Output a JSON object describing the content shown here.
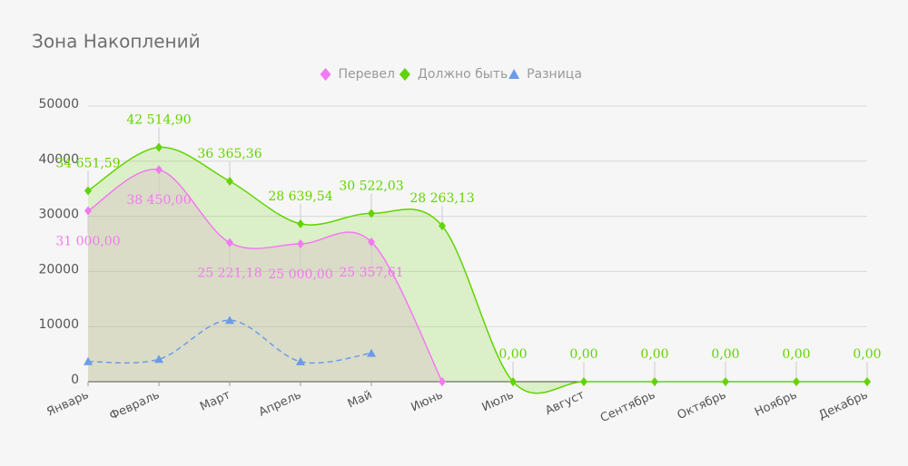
{
  "chart_data": {
    "type": "spline-area",
    "title": "Зона Накоплений",
    "categories": [
      "Январь",
      "Февраль",
      "Март",
      "Апрель",
      "Май",
      "Июнь",
      "Июль",
      "Август",
      "Сентябрь",
      "Октябрь",
      "Ноябрь",
      "Декабрь"
    ],
    "series": [
      {
        "name": "Перевел",
        "color": "#f27af0",
        "marker": "diamond",
        "area": true,
        "values": [
          31000,
          38450,
          25221.18,
          25000,
          25357.61,
          0,
          null,
          null,
          null,
          null,
          null,
          null
        ],
        "value_labels": [
          "31 000,00",
          "38 450,00",
          "25 221,18",
          "25 000,00",
          "25 357,61",
          null,
          null,
          null,
          null,
          null,
          null,
          null
        ]
      },
      {
        "name": "Должно быть",
        "color": "#62d400",
        "marker": "diamond",
        "area": true,
        "values": [
          34651.59,
          42514.9,
          36365.36,
          28639.54,
          30522.03,
          28263.13,
          0,
          0,
          0,
          0,
          0,
          0
        ],
        "value_labels": [
          "34 651,59",
          "42 514,90",
          "36 365,36",
          "28 639,54",
          "30 522,03",
          "28 263,13",
          "0,00",
          "0,00",
          "0,00",
          "0,00",
          "0,00",
          "0,00"
        ]
      },
      {
        "name": "Разница",
        "color": "#6c9be8",
        "marker": "triangle",
        "area": false,
        "dashed": true,
        "values": [
          3651.59,
          4064.9,
          11144.18,
          3639.54,
          5164.42,
          null,
          null,
          null,
          null,
          null,
          null,
          null
        ]
      }
    ],
    "ylim": [
      0,
      50000
    ],
    "yticks": [
      0,
      10000,
      20000,
      30000,
      40000,
      50000
    ],
    "grid": true,
    "legend": "top"
  }
}
